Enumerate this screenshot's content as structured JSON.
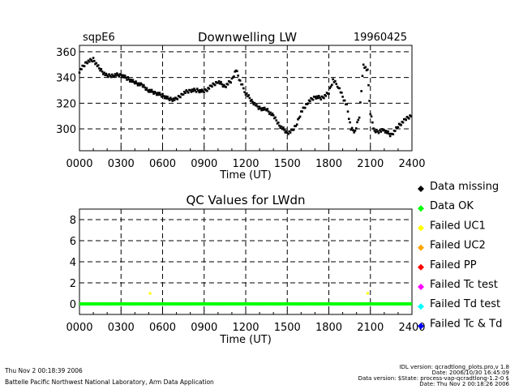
{
  "top": {
    "site": "sqpE6",
    "date": "19960425"
  },
  "chart_data": [
    {
      "type": "scatter",
      "title": "Downwelling LW",
      "xlabel": "Time (UT)",
      "ylabel": "",
      "xlim": [
        0,
        24
      ],
      "ylim": [
        283,
        365
      ],
      "xticks": [
        0,
        3,
        6,
        9,
        12,
        15,
        18,
        21,
        24
      ],
      "xtick_labels": [
        "0000",
        "0300",
        "0600",
        "0900",
        "1200",
        "1500",
        "1800",
        "2100",
        "2400"
      ],
      "yticks": [
        300,
        320,
        340,
        360
      ],
      "ytick_labels": [
        "300",
        "320",
        "340",
        "360"
      ],
      "grid": true,
      "series": [
        {
          "name": "Downwelling LW",
          "color": "#000000",
          "x": [
            0,
            0.5,
            1,
            1.5,
            2,
            2.5,
            3,
            3.5,
            4,
            4.5,
            5,
            5.5,
            6,
            6.5,
            7,
            7.5,
            8,
            8.5,
            9,
            9.5,
            10,
            10.5,
            11,
            11.3,
            11.6,
            12,
            12.5,
            13,
            13.5,
            14,
            14.5,
            15,
            15.3,
            15.7,
            16,
            16.5,
            17,
            17.5,
            18,
            18.3,
            18.7,
            19,
            19.3,
            19.6,
            19.9,
            20.2,
            20.5,
            20.8,
            21,
            21.3,
            21.6,
            22,
            22.5,
            23,
            23.5,
            24
          ],
          "y": [
            345,
            352,
            354,
            346,
            341,
            342,
            342,
            339,
            336,
            334,
            330,
            328,
            326,
            323,
            323,
            328,
            330,
            330,
            329,
            333,
            337,
            333,
            338,
            346,
            337,
            328,
            321,
            316,
            315,
            310,
            302,
            297,
            298,
            304,
            313,
            321,
            325,
            324,
            328,
            338,
            333,
            325,
            318,
            300,
            298,
            310,
            350,
            345,
            312,
            298,
            298,
            299,
            295,
            302,
            307,
            311
          ]
        }
      ]
    },
    {
      "type": "scatter",
      "title": "QC Values for LWdn",
      "xlabel": "Time (UT)",
      "ylabel": "",
      "xlim": [
        0,
        24
      ],
      "ylim": [
        -1,
        9
      ],
      "xticks": [
        0,
        3,
        6,
        9,
        12,
        15,
        18,
        21,
        24
      ],
      "xtick_labels": [
        "0000",
        "0300",
        "0600",
        "0900",
        "1200",
        "1500",
        "1800",
        "2100",
        "2400"
      ],
      "yticks": [
        0,
        2,
        4,
        6,
        8
      ],
      "ytick_labels": [
        "0",
        "2",
        "4",
        "6",
        "8"
      ],
      "grid": true,
      "series": [
        {
          "name": "Data OK",
          "color": "#00ff00",
          "x": [
            0,
            24
          ],
          "y": [
            0,
            0
          ]
        },
        {
          "name": "Failed UC1",
          "color": "#ffff00",
          "x": [
            5.1,
            20.8
          ],
          "y": [
            1,
            1
          ]
        }
      ]
    }
  ],
  "legend": [
    {
      "label": "Data missing",
      "color": "#000000"
    },
    {
      "label": "Data OK",
      "color": "#00ff00"
    },
    {
      "label": "Failed UC1",
      "color": "#ffff00"
    },
    {
      "label": "Failed UC2",
      "color": "#ffa500"
    },
    {
      "label": "Failed PP",
      "color": "#ff0000"
    },
    {
      "label": "Failed Tc test",
      "color": "#ff00ff"
    },
    {
      "label": "Failed Td test",
      "color": "#00ffff"
    },
    {
      "label": "Failed Tc & Td",
      "color": "#0000ff"
    }
  ],
  "footer": {
    "left1": "Thu Nov  2 00:18:39 2006",
    "left2": "Battelle Pacific Northwest National Laboratory, Arm Data Application",
    "right1": "IDL version: qcradtlong_plots.pro,v 1.8",
    "right2": "Date: 2006/10/30 16:45:09",
    "right3": "Data version: $State: process-vap-qcradtlong-1.2-0 $",
    "right4": "Date: Thu Nov  2 00:18:26 2006"
  }
}
